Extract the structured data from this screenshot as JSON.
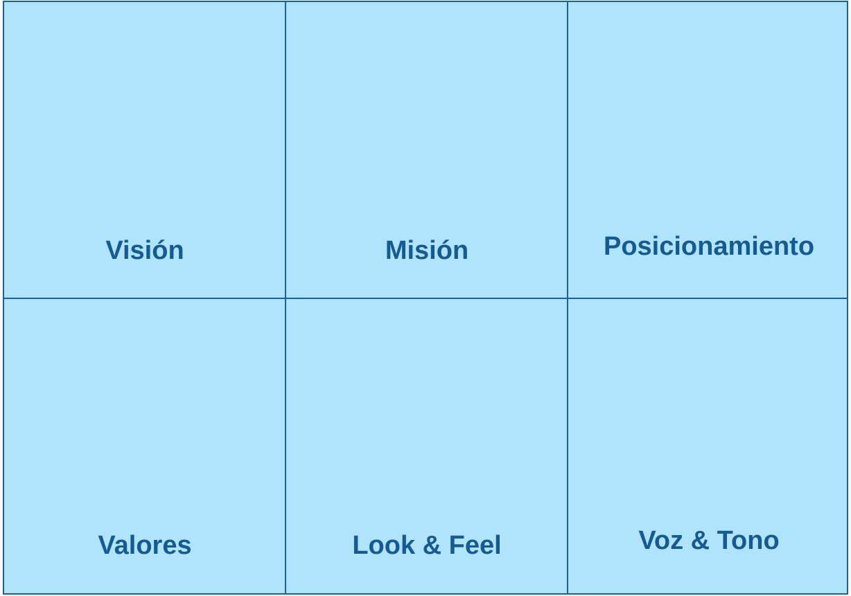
{
  "cells": [
    {
      "label": "Visión"
    },
    {
      "label": "Misión"
    },
    {
      "label": "Posicionamiento"
    },
    {
      "label": "Valores"
    },
    {
      "label": "Look & Feel"
    },
    {
      "label": "Voz & Tono"
    }
  ],
  "colors": {
    "fill": "#b0e4fd",
    "border": "#1a5f9e",
    "text": "#155a92"
  }
}
